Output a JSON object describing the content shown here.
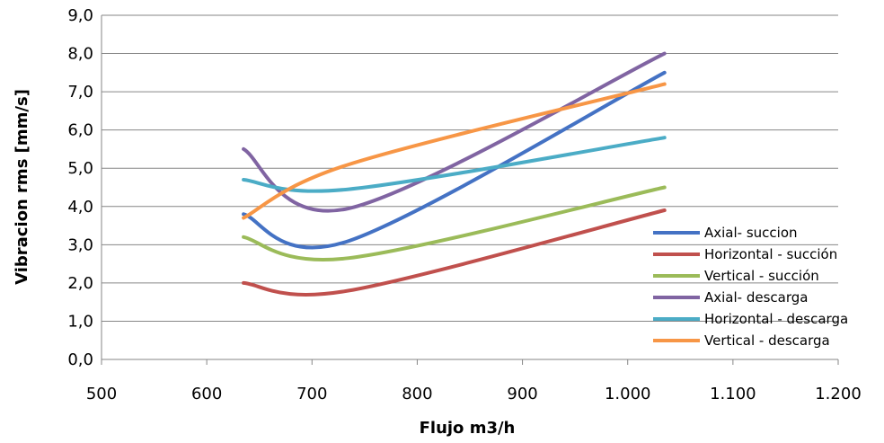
{
  "chart_data": {
    "type": "line",
    "xlabel": "Flujo m3/h",
    "ylabel": "Vibracion rms [mm/s]",
    "xlim": [
      500,
      1200
    ],
    "ylim": [
      0,
      9
    ],
    "x_ticks": [
      500,
      600,
      700,
      800,
      900,
      1000,
      1100,
      1200
    ],
    "x_tick_labels": [
      "500",
      "600",
      "700",
      "800",
      "900",
      "1.000",
      "1.100",
      "1.200"
    ],
    "y_ticks": [
      0,
      1,
      2,
      3,
      4,
      5,
      6,
      7,
      8,
      9
    ],
    "y_tick_labels": [
      "0,0",
      "1,0",
      "2,0",
      "3,0",
      "4,0",
      "5,0",
      "6,0",
      "7,0",
      "8,0",
      "9,0"
    ],
    "grid": "horizontal",
    "legend_position": "right",
    "x": [
      635,
      735,
      1035
    ],
    "series": [
      {
        "name": "Axial- succion",
        "color": "#4472C4",
        "values": [
          3.8,
          3.1,
          7.5
        ]
      },
      {
        "name": "Horizontal - succión",
        "color": "#C0504D",
        "values": [
          2.0,
          1.8,
          3.9
        ]
      },
      {
        "name": "Vertical - succión",
        "color": "#9BBB59",
        "values": [
          3.2,
          2.65,
          4.5
        ]
      },
      {
        "name": "Axial- descarga",
        "color": "#8064A2",
        "values": [
          5.5,
          3.95,
          8.0
        ]
      },
      {
        "name": "Horizontal - descarga",
        "color": "#4BACC6",
        "values": [
          4.7,
          4.45,
          5.8
        ]
      },
      {
        "name": "Vertical - descarga",
        "color": "#F79646",
        "values": [
          3.7,
          5.1,
          7.2
        ]
      }
    ]
  }
}
